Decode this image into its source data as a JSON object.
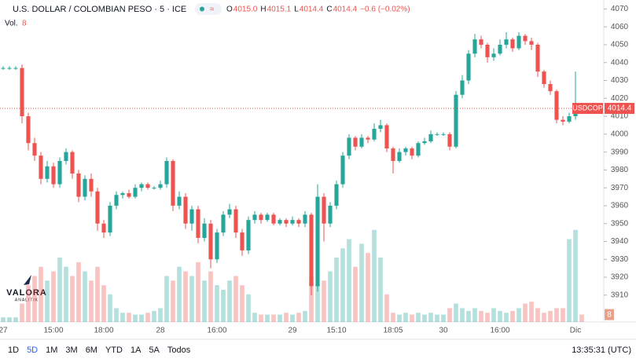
{
  "header": {
    "symbol": "U.S. DOLLAR / COLOMBIAN PESO · 5 · ICE",
    "ohlc": [
      {
        "label": "O",
        "value": "4015.0"
      },
      {
        "label": "H",
        "value": "4015.1"
      },
      {
        "label": "L",
        "value": "4014.4"
      },
      {
        "label": "C",
        "value": "4014.4"
      }
    ],
    "change": "−0.6 (−0.02%)",
    "volume_label": "Vol.",
    "volume_value": "8"
  },
  "chart_data": {
    "type": "candlestick",
    "categories": [
      "27",
      null,
      null,
      null,
      null,
      null,
      null,
      null,
      "15:00",
      null,
      null,
      null,
      null,
      null,
      null,
      null,
      "18:00",
      null,
      null,
      null,
      null,
      null,
      null,
      null,
      null,
      "28",
      null,
      null,
      null,
      null,
      null,
      null,
      null,
      null,
      "16:00",
      null,
      null,
      null,
      null,
      null,
      null,
      null,
      null,
      null,
      null,
      null,
      "29",
      null,
      null,
      null,
      null,
      null,
      null,
      "15:10",
      null,
      null,
      null,
      null,
      null,
      null,
      null,
      null,
      "18:05",
      null,
      null,
      null,
      null,
      null,
      null,
      null,
      "30",
      null,
      null,
      null,
      null,
      null,
      null,
      null,
      null,
      "16:00",
      null,
      null,
      null,
      null,
      null,
      null,
      null,
      null,
      null,
      null,
      null,
      "Dic",
      null
    ],
    "open": [
      4037,
      4037,
      4037,
      4037,
      4010,
      3995,
      3988,
      3975,
      3982,
      3972,
      3985,
      3990,
      3978,
      3965,
      3975,
      3968,
      3950,
      3945,
      3960,
      3966,
      3967,
      3965,
      3970,
      3972,
      3970,
      3970,
      3972,
      3985,
      3960,
      3965,
      3950,
      3958,
      3942,
      3950,
      3930,
      3945,
      3955,
      3958,
      3945,
      3935,
      3952,
      3955,
      3952,
      3955,
      3950,
      3952,
      3950,
      3952,
      3950,
      3955,
      3915,
      3965,
      3950,
      3960,
      3972,
      3988,
      3998,
      3993,
      3998,
      3997,
      4003,
      4005,
      3992,
      3985,
      3990,
      3992,
      3988,
      3995,
      3996,
      4000,
      4000,
      4000,
      3993,
      4022,
      4030,
      4045,
      4053,
      4050,
      4043,
      4045,
      4050,
      4053,
      4048,
      4055,
      4052,
      4050,
      4035,
      4028,
      4024,
      4008,
      4007,
      4010,
      4015
    ],
    "high": [
      4038,
      4038,
      4038,
      4039,
      4012,
      3998,
      3990,
      3985,
      3984,
      3987,
      3992,
      3991,
      3980,
      3977,
      3978,
      3970,
      3952,
      3962,
      3968,
      3968,
      3969,
      3972,
      3973,
      3973,
      3971,
      3974,
      3987,
      3986,
      3968,
      3967,
      3960,
      3960,
      3953,
      3952,
      3947,
      3957,
      3961,
      3960,
      3947,
      3954,
      3957,
      3956,
      3956,
      3956,
      3953,
      3953,
      3954,
      3953,
      3957,
      3956,
      3972,
      3967,
      3962,
      3974,
      3990,
      4000,
      3999,
      4000,
      3999,
      4006,
      4008,
      4006,
      3993,
      3992,
      3993,
      3993,
      3996,
      3998,
      4002,
      4001,
      4001,
      4001,
      4024,
      4033,
      4047,
      4056,
      4055,
      4051,
      4048,
      4053,
      4057,
      4054,
      4057,
      4056,
      4054,
      4051,
      4036,
      4030,
      4025,
      4010,
      4012,
      4035,
      4015.1
    ],
    "low": [
      4036,
      4036,
      4036,
      4006,
      3991,
      3985,
      3972,
      3973,
      3970,
      3970,
      3983,
      3975,
      3962,
      3963,
      3965,
      3946,
      3942,
      3943,
      3958,
      3964,
      3964,
      3964,
      3968,
      3969,
      3969,
      3969,
      3970,
      3957,
      3958,
      3947,
      3946,
      3939,
      3940,
      3925,
      3928,
      3943,
      3953,
      3942,
      3932,
      3933,
      3950,
      3950,
      3951,
      3949,
      3949,
      3948,
      3949,
      3948,
      3948,
      3910,
      3912,
      3940,
      3948,
      3958,
      3970,
      3986,
      3991,
      3992,
      3995,
      3996,
      4001,
      3990,
      3978,
      3984,
      3988,
      3986,
      3987,
      3994,
      3995,
      3999,
      3999,
      3991,
      3992,
      4020,
      4028,
      4043,
      4048,
      4040,
      4041,
      4044,
      4048,
      4046,
      4047,
      4050,
      4047,
      4032,
      4026,
      4022,
      4006,
      4005,
      4006,
      4008,
      4014.4
    ],
    "close": [
      4037,
      4037,
      4037,
      4010,
      3995,
      3988,
      3975,
      3982,
      3972,
      3985,
      3990,
      3978,
      3965,
      3975,
      3968,
      3950,
      3945,
      3960,
      3966,
      3967,
      3965,
      3970,
      3972,
      3970,
      3970,
      3972,
      3985,
      3960,
      3965,
      3950,
      3958,
      3942,
      3950,
      3930,
      3945,
      3955,
      3958,
      3945,
      3935,
      3952,
      3955,
      3952,
      3955,
      3950,
      3952,
      3950,
      3952,
      3950,
      3955,
      3915,
      3965,
      3950,
      3960,
      3972,
      3988,
      3998,
      3993,
      3998,
      3997,
      4003,
      4005,
      3992,
      3985,
      3990,
      3992,
      3988,
      3995,
      3996,
      4000,
      4000,
      4000,
      3993,
      4022,
      4030,
      4045,
      4053,
      4050,
      4043,
      4045,
      4050,
      4053,
      4048,
      4055,
      4052,
      4050,
      4035,
      4028,
      4024,
      4008,
      4007,
      4010,
      4015,
      4014.4
    ],
    "volume": {
      "axis": "y2",
      "values": [
        5,
        5,
        5,
        20,
        40,
        50,
        60,
        45,
        55,
        70,
        60,
        50,
        65,
        55,
        45,
        60,
        40,
        30,
        15,
        10,
        10,
        8,
        8,
        10,
        12,
        15,
        50,
        45,
        60,
        55,
        50,
        65,
        45,
        55,
        40,
        35,
        45,
        50,
        40,
        30,
        10,
        8,
        8,
        8,
        8,
        10,
        8,
        10,
        12,
        50,
        40,
        45,
        55,
        70,
        80,
        90,
        60,
        85,
        75,
        100,
        70,
        30,
        10,
        8,
        10,
        8,
        10,
        8,
        10,
        8,
        8,
        15,
        20,
        15,
        12,
        15,
        12,
        10,
        15,
        12,
        10,
        12,
        15,
        20,
        22,
        15,
        10,
        12,
        15,
        15,
        90,
        100,
        8
      ]
    },
    "up_color": "#26a69a",
    "down_color": "#ef5350",
    "ylim": [
      3895,
      4075
    ],
    "yticks": [
      3910,
      3920,
      3930,
      3940,
      3950,
      3960,
      3970,
      3980,
      3990,
      4000,
      4010,
      4020,
      4030,
      4040,
      4050,
      4060,
      4070
    ],
    "y2lim": [
      0,
      350
    ],
    "last_price": {
      "symbol": "USDCOP",
      "value": 4014.4
    }
  },
  "logo": {
    "name": "VALORA",
    "tagline": "ANALITIK"
  },
  "toolbar": {
    "ranges": [
      "1D",
      "5D",
      "1M",
      "3M",
      "6M",
      "YTD",
      "1A",
      "5A",
      "Todos"
    ],
    "active": 1,
    "clock": "13:35:31 (UTC)"
  }
}
